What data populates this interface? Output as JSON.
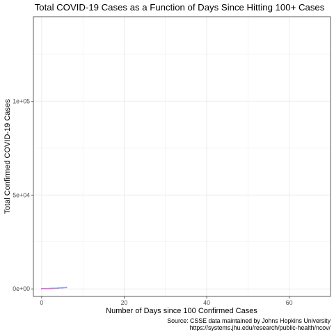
{
  "chart_data": {
    "type": "line",
    "title": "Total COVID-19 Cases as a Function of Days Since Hitting 100+ Cases",
    "xlabel": "Number of Days since 100 Confirmed Cases",
    "ylabel": "Total Confirmed COVID-19 Cases",
    "xlim": [
      -2,
      70
    ],
    "ylim": [
      -4000,
      145000
    ],
    "x_ticks": [
      0,
      20,
      40,
      60
    ],
    "x_tick_labels": [
      "0",
      "20",
      "40",
      "60"
    ],
    "y_ticks": [
      0,
      50000,
      100000
    ],
    "y_tick_labels": [
      "0e+00",
      "5e+04",
      "1e+05"
    ],
    "grid": true,
    "legend": "none",
    "caption_lines": [
      "Source: CSSE data maintained by Johns Hopkins University",
      "https://systems.jhu.edu/research/public-health/ncov/"
    ],
    "series": [
      {
        "color": "#F8766D",
        "x": [
          0,
          1,
          2,
          3,
          4
        ],
        "y": [
          100,
          150,
          220,
          300,
          400
        ]
      },
      {
        "color": "#C49A00",
        "x": [
          0,
          1,
          2,
          3
        ],
        "y": [
          100,
          140,
          200,
          260
        ]
      },
      {
        "color": "#53B400",
        "x": [
          0,
          1,
          2,
          3,
          4,
          5
        ],
        "y": [
          100,
          160,
          230,
          310,
          420,
          560
        ]
      },
      {
        "color": "#00C094",
        "x": [
          0,
          1,
          2
        ],
        "y": [
          100,
          130,
          180
        ]
      },
      {
        "color": "#00B6EB",
        "x": [
          0,
          1,
          2,
          3,
          4,
          5,
          6
        ],
        "y": [
          100,
          170,
          250,
          340,
          460,
          610,
          790
        ]
      },
      {
        "color": "#A58AFF",
        "x": [
          0,
          1,
          2,
          3,
          4,
          5,
          6
        ],
        "y": [
          100,
          150,
          210,
          290,
          380,
          500,
          650
        ]
      },
      {
        "color": "#FB61D7",
        "x": [
          0,
          1,
          2,
          3
        ],
        "y": [
          100,
          145,
          205,
          280
        ]
      }
    ]
  }
}
